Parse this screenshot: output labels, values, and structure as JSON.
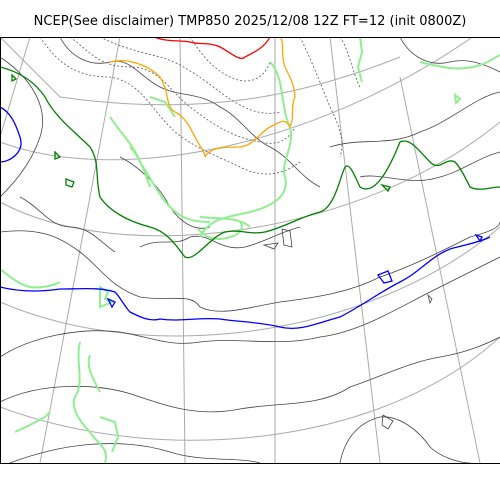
{
  "title": "NCEP(See disclaimer) TMP850 2025/12/08 12Z FT=12 (init 0800Z)",
  "colors": {
    "graticule": "#aaaaaa",
    "coast": "#444444",
    "isotherm_dotted": "#555555",
    "precip_green": "#90ee90",
    "zero_line": "#0000ff",
    "green_line": "#008000",
    "orange_line": "#ffa500",
    "red_line": "#ff0000",
    "frame": "#000000"
  }
}
